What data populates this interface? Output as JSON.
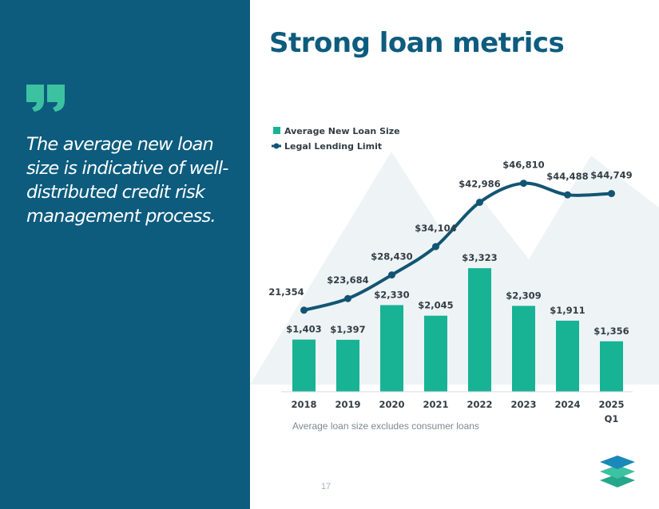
{
  "slide": {
    "title": "Strong loan metrics",
    "quote": "The average new loan size is indicative of well-distributed credit risk management process.",
    "footnote": "Average loan size excludes consumer loans",
    "page_number": "17"
  },
  "colors": {
    "panel": "#0d5c7e",
    "bar": "#17b394",
    "line": "#125573",
    "accent": "#3cc2a0"
  },
  "icons": {
    "quote": "quote-mark-icon",
    "logo": "stacked-layers-logo-icon"
  },
  "chart_data": {
    "type": "bar+line",
    "categories": [
      "2018",
      "2019",
      "2020",
      "2021",
      "2022",
      "2023",
      "2024",
      "2025"
    ],
    "category_sublabels": [
      "",
      "",
      "",
      "",
      "",
      "",
      "",
      "Q1"
    ],
    "series": [
      {
        "name": "Average New Loan Size",
        "type": "bar",
        "values": [
          1403,
          1397,
          2330,
          2045,
          3323,
          2309,
          1911,
          1356
        ],
        "labels": [
          "$1,403",
          "$1,397",
          "$2,330",
          "$2,045",
          "$3,323",
          "$2,309",
          "$1,911",
          "$1,356"
        ]
      },
      {
        "name": "Legal Lending Limit",
        "type": "line",
        "values": [
          21354,
          23684,
          28430,
          34104,
          42986,
          46810,
          44488,
          44749
        ],
        "labels": [
          "21,354",
          "$23,684",
          "$28,430",
          "$34,104",
          "$42,986",
          "$46,810",
          "$44,488",
          "$44,749"
        ]
      }
    ],
    "legend_position": "top-left",
    "bar_ylim": [
      0,
      4000
    ],
    "line_ylim": [
      5000,
      50000
    ]
  }
}
